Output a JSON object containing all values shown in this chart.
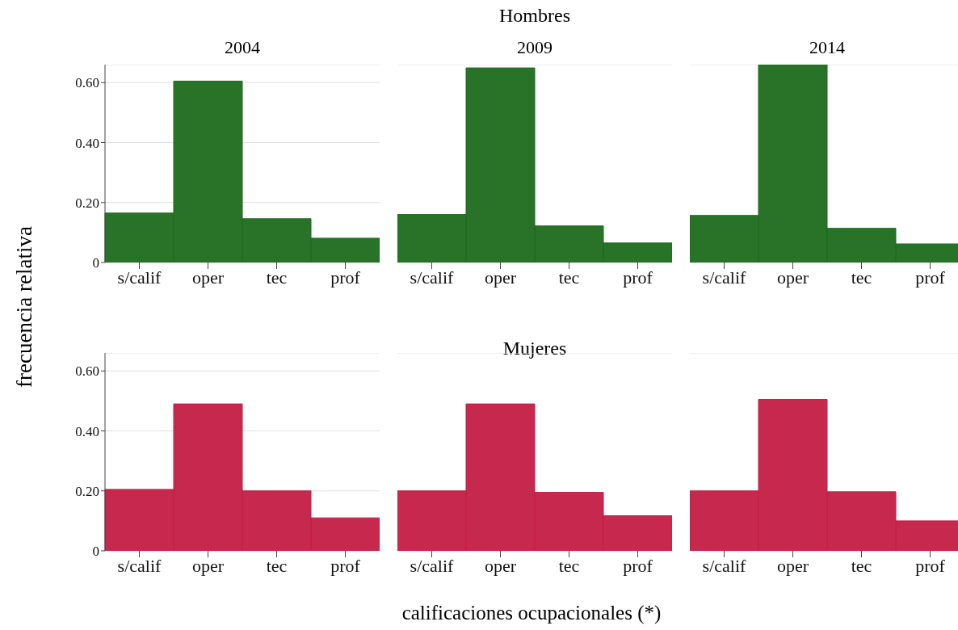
{
  "chart_data": [
    {
      "type": "bar",
      "title": "2004",
      "ylabel": "frecuencia relativa",
      "categories": [
        "s/calif",
        "oper",
        "tec",
        "prof"
      ],
      "series": [
        {
          "color": "#1e6b1e",
          "values": [
            0.165,
            0.605,
            0.146,
            0.081
          ]
        }
      ],
      "ylim": [
        0,
        0.66
      ],
      "yticks": [
        0,
        {
          "value": 0.2,
          "label": "0.20"
        },
        {
          "value": 0.4,
          "label": "0.40"
        },
        {
          "value": 0.6,
          "label": "0.60"
        }
      ],
      "grid": "y"
    },
    {
      "type": "bar",
      "title": "Hombres",
      "subtitle": "2009",
      "categories": [
        "s/calif",
        "oper",
        "tec",
        "prof"
      ],
      "series": [
        {
          "color": "#1e6b1e",
          "values": [
            0.16,
            0.649,
            0.122,
            0.065
          ]
        }
      ],
      "ylim": [
        0,
        0.66
      ],
      "grid": "y",
      "tick_labels": "x"
    },
    {
      "type": "bar",
      "title": "2014",
      "categories": [
        "s/calif",
        "oper",
        "tec",
        "prof"
      ],
      "series": [
        {
          "color": "#1e6b1e",
          "values": [
            0.157,
            0.66,
            0.114,
            0.062
          ]
        }
      ],
      "ylim": [
        0,
        0.66
      ],
      "grid": "y",
      "tick_labels": "x"
    },
    {
      "type": "bar",
      "categories": [
        "s/calif",
        "oper",
        "tec",
        "prof"
      ],
      "series": [
        {
          "color": "#c41e45",
          "values": [
            0.205,
            0.49,
            0.2,
            0.11
          ]
        }
      ],
      "ylim": [
        0,
        0.66
      ],
      "yticks": [
        0,
        {
          "value": 0.2,
          "label": "0.20"
        },
        {
          "value": 0.4,
          "label": "0.40"
        },
        {
          "value": 0.6,
          "label": "0.60"
        }
      ],
      "grid": "y"
    },
    {
      "type": "bar",
      "title": "Mujeres",
      "xlabel": "calificaciones ocupacionales (*)",
      "categories": [
        "s/calif",
        "oper",
        "tec",
        "prof"
      ],
      "series": [
        {
          "color": "#c41e45",
          "values": [
            0.2,
            0.49,
            0.195,
            0.117
          ]
        }
      ],
      "ylim": [
        0,
        0.66
      ],
      "grid": "y",
      "tick_labels": "x"
    },
    {
      "type": "bar",
      "categories": [
        "s/calif",
        "oper",
        "tec",
        "prof"
      ],
      "series": [
        {
          "color": "#c41e45",
          "values": [
            0.2,
            0.505,
            0.197,
            0.1
          ]
        }
      ],
      "ylim": [
        0,
        0.66
      ],
      "grid": "y",
      "tick_labels": "x"
    }
  ]
}
